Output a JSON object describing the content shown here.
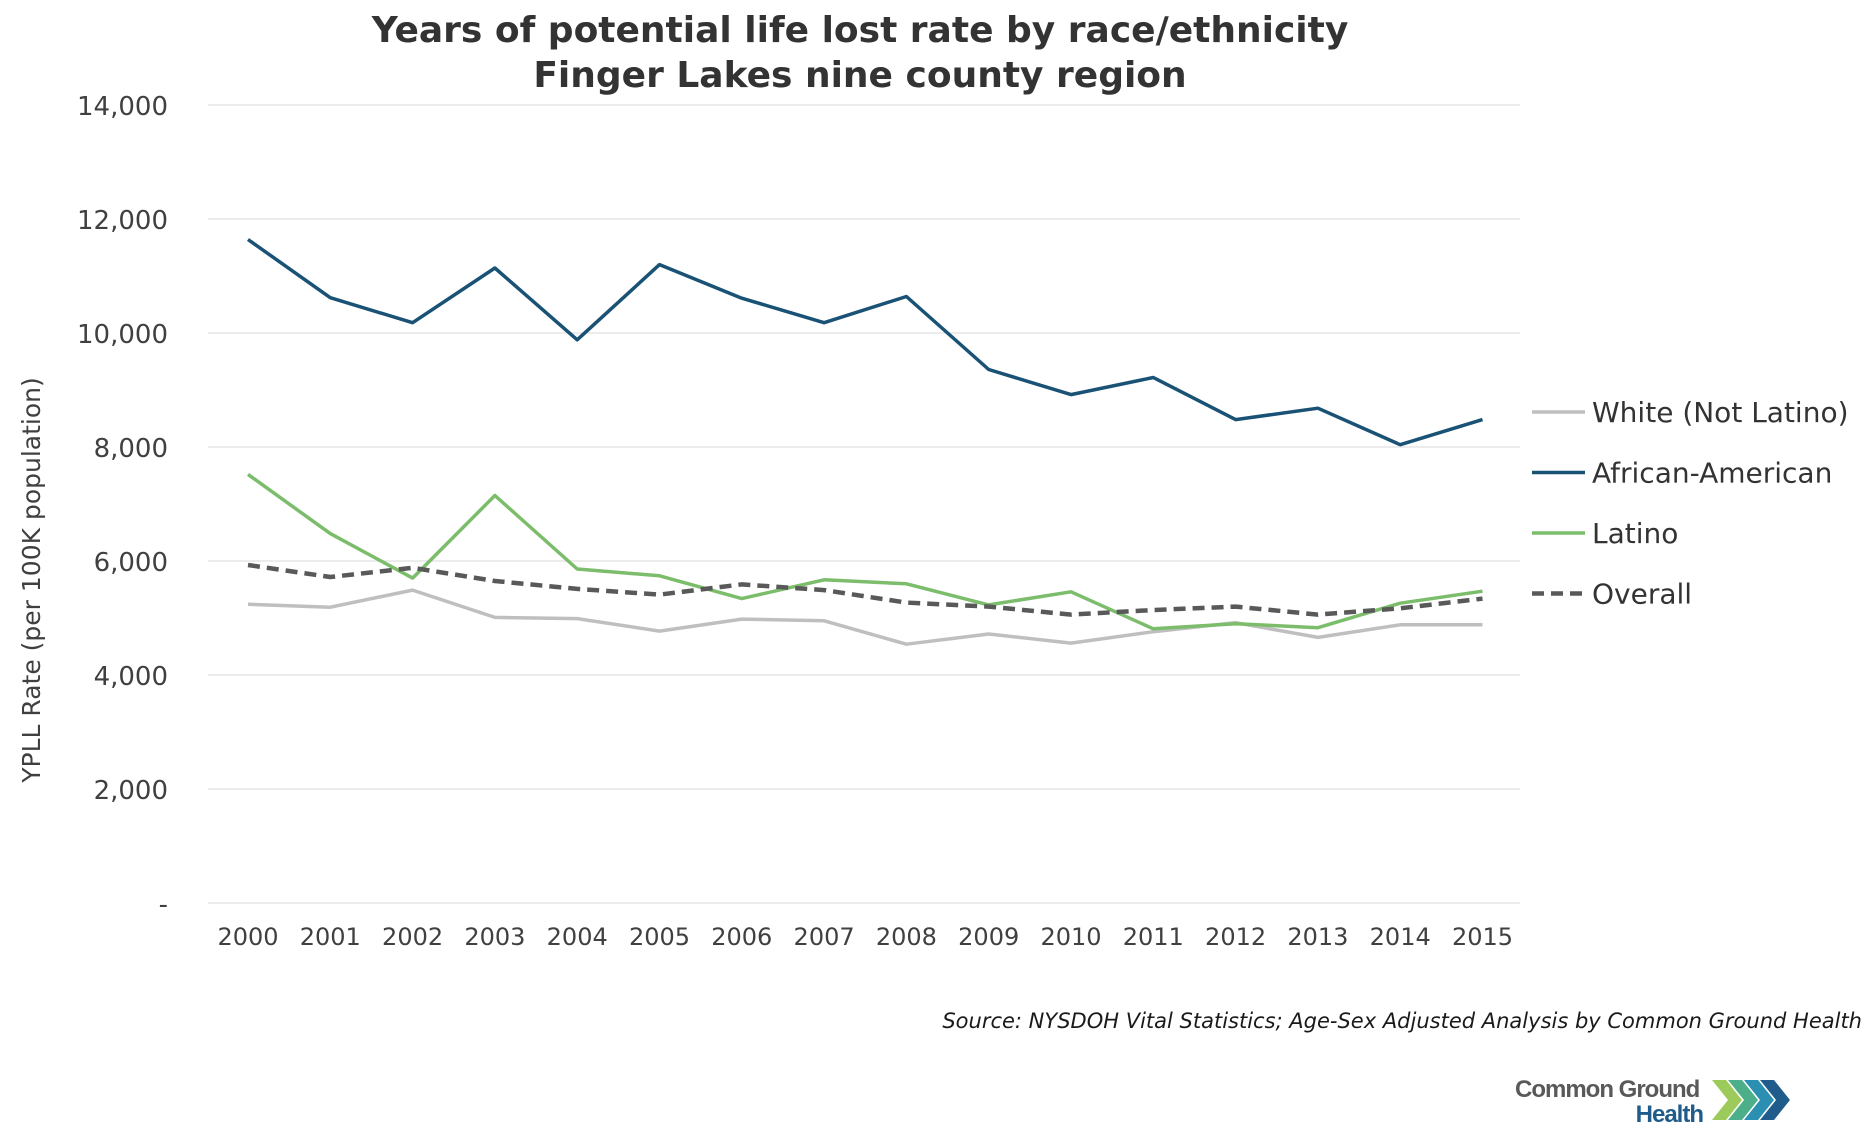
{
  "title_line1": "Years of potential life lost rate by race/ethnicity",
  "title_line2": "Finger Lakes nine county region",
  "source": "Source: NYSDOH Vital Statistics; Age-Sex Adjusted Analysis by Common Ground Health",
  "logo": {
    "line1": "Common Ground",
    "line2": "Health"
  },
  "colors": {
    "white": "#bfbfbf",
    "african_american": "#1a5276",
    "latino": "#7cbd6b",
    "overall": "#595959",
    "grid": "#e6e6e6",
    "logo_text_gray": "#595959",
    "logo_text_blue": "#1f5c8b",
    "logo_chevrons": [
      "#9ccb5b",
      "#4caf8a",
      "#2a8fb0",
      "#1f5c8b"
    ]
  },
  "chart_data": {
    "type": "line",
    "title": "Years of potential life lost rate by race/ethnicity Finger Lakes nine county region",
    "ylabel": "YPLL Rate (per 100K population)",
    "xlabel": "",
    "ylim": [
      0,
      14000
    ],
    "yticks": [
      0,
      2000,
      4000,
      6000,
      8000,
      10000,
      12000,
      14000
    ],
    "ytick_labels": [
      "-",
      "2,000",
      "4,000",
      "6,000",
      "8,000",
      "10,000",
      "12,000",
      "14,000"
    ],
    "categories": [
      "2000",
      "2001",
      "2002",
      "2003",
      "2004",
      "2005",
      "2006",
      "2007",
      "2008",
      "2009",
      "2010",
      "2011",
      "2012",
      "2013",
      "2014",
      "2015"
    ],
    "grid": true,
    "legend_position": "right",
    "series": [
      {
        "name": "White (Not Latino)",
        "style": "solid",
        "color_key": "white",
        "values": [
          5240,
          5190,
          5490,
          5010,
          4990,
          4770,
          4980,
          4950,
          4540,
          4720,
          4560,
          4760,
          4920,
          4660,
          4880,
          4880
        ]
      },
      {
        "name": "African-American",
        "style": "solid",
        "color_key": "african_american",
        "values": [
          11640,
          10620,
          10180,
          11140,
          9880,
          11200,
          10610,
          10180,
          10640,
          9360,
          8920,
          9220,
          8480,
          8680,
          8040,
          8480
        ]
      },
      {
        "name": "Latino",
        "style": "solid",
        "color_key": "latino",
        "values": [
          7520,
          6480,
          5700,
          7150,
          5860,
          5740,
          5340,
          5670,
          5600,
          5230,
          5460,
          4810,
          4900,
          4830,
          5260,
          5470
        ]
      },
      {
        "name": "Overall",
        "style": "dashed",
        "color_key": "overall",
        "values": [
          5930,
          5720,
          5880,
          5650,
          5510,
          5410,
          5590,
          5490,
          5270,
          5200,
          5060,
          5140,
          5200,
          5060,
          5170,
          5340
        ]
      }
    ]
  }
}
